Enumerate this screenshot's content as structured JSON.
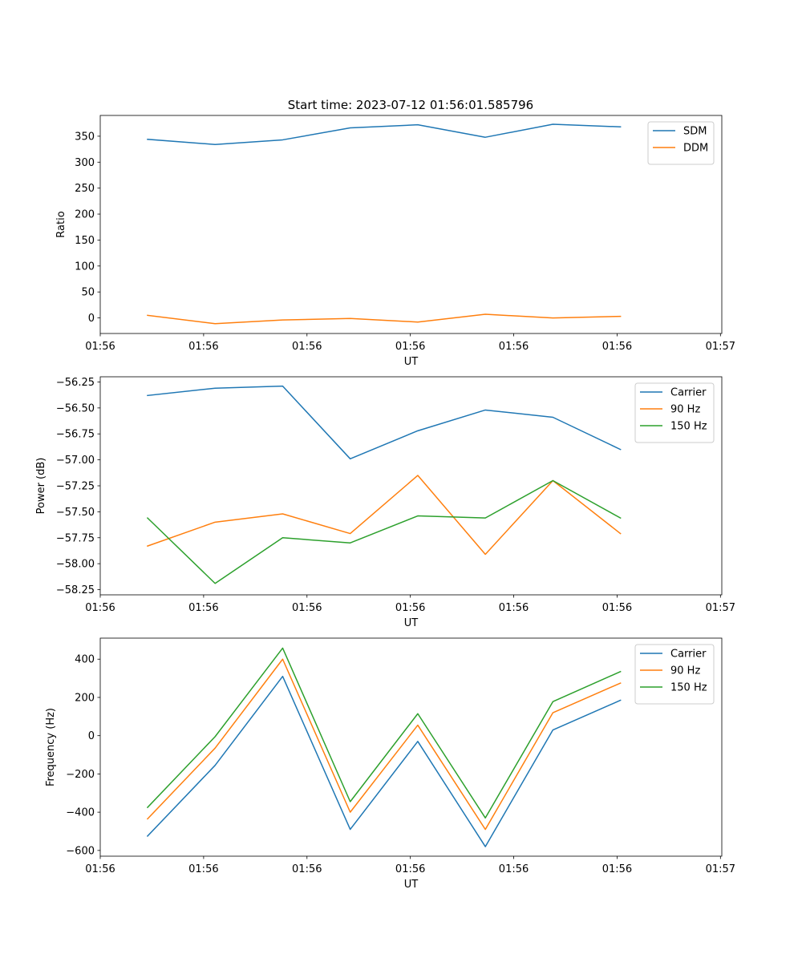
{
  "figure_title": "Start time: 2023-07-12 01:56:01.585796",
  "chart_data": [
    {
      "type": "line",
      "ylabel": "Ratio",
      "xlabel": "UT",
      "ylim": [
        -30,
        390
      ],
      "yticks": [
        0,
        50,
        100,
        150,
        200,
        250,
        300,
        350
      ],
      "xlim": [
        -0.7,
        8.5
      ],
      "xticks": [
        -0.7,
        0.83,
        2.36,
        3.89,
        5.42,
        6.95,
        8.48
      ],
      "xtick_labels": [
        "01:56",
        "01:56",
        "01:56",
        "01:56",
        "01:56",
        "01:56",
        "01:57"
      ],
      "x": [
        0,
        1,
        2,
        3,
        4,
        5,
        6,
        7
      ],
      "legend": "upper right",
      "series": [
        {
          "name": "SDM",
          "color": "#1f77b4",
          "values": [
            344,
            334,
            343,
            366,
            372,
            348,
            373,
            368
          ]
        },
        {
          "name": "DDM",
          "color": "#ff7f0e",
          "values": [
            5,
            -11,
            -4,
            -1,
            -8,
            7,
            0,
            3
          ]
        }
      ]
    },
    {
      "type": "line",
      "ylabel": "Power (dB)",
      "xlabel": "UT",
      "ylim": [
        -58.3,
        -56.2
      ],
      "yticks": [
        -58.25,
        -58.0,
        -57.75,
        -57.5,
        -57.25,
        -57.0,
        -56.75,
        -56.5,
        -56.25
      ],
      "ytick_labels": [
        "−58.25",
        "−58.00",
        "−57.75",
        "−57.50",
        "−57.25",
        "−57.00",
        "−56.75",
        "−56.50",
        "−56.25"
      ],
      "xlim": [
        -0.7,
        8.5
      ],
      "xticks": [
        -0.7,
        0.83,
        2.36,
        3.89,
        5.42,
        6.95,
        8.48
      ],
      "xtick_labels": [
        "01:56",
        "01:56",
        "01:56",
        "01:56",
        "01:56",
        "01:56",
        "01:57"
      ],
      "x": [
        0,
        1,
        2,
        3,
        4,
        5,
        6,
        7
      ],
      "legend": "upper right",
      "series": [
        {
          "name": "Carrier",
          "color": "#1f77b4",
          "values": [
            -56.38,
            -56.31,
            -56.29,
            -56.99,
            -56.72,
            -56.52,
            -56.59,
            -56.9
          ]
        },
        {
          "name": "90 Hz",
          "color": "#ff7f0e",
          "values": [
            -57.83,
            -57.6,
            -57.52,
            -57.71,
            -57.15,
            -57.91,
            -57.2,
            -57.71
          ]
        },
        {
          "name": "150 Hz",
          "color": "#2ca02c",
          "values": [
            -57.56,
            -58.19,
            -57.75,
            -57.8,
            -57.54,
            -57.56,
            -57.2,
            -57.56
          ]
        }
      ]
    },
    {
      "type": "line",
      "ylabel": "Frequency (Hz)",
      "xlabel": "UT",
      "ylim": [
        -630,
        510
      ],
      "yticks": [
        -600,
        -400,
        -200,
        0,
        200,
        400
      ],
      "ytick_labels": [
        "−600",
        "−400",
        "−200",
        "0",
        "200",
        "400"
      ],
      "xlim": [
        -0.7,
        8.5
      ],
      "xticks": [
        -0.7,
        0.83,
        2.36,
        3.89,
        5.42,
        6.95,
        8.48
      ],
      "xtick_labels": [
        "01:56",
        "01:56",
        "01:56",
        "01:56",
        "01:56",
        "01:56",
        "01:57"
      ],
      "x": [
        0,
        1,
        2,
        3,
        4,
        5,
        6,
        7
      ],
      "legend": "upper right",
      "series": [
        {
          "name": "Carrier",
          "color": "#1f77b4",
          "values": [
            -525,
            -155,
            310,
            -490,
            -30,
            -580,
            30,
            185
          ]
        },
        {
          "name": "90 Hz",
          "color": "#ff7f0e",
          "values": [
            -435,
            -65,
            400,
            -400,
            55,
            -490,
            120,
            275
          ]
        },
        {
          "name": "150 Hz",
          "color": "#2ca02c",
          "values": [
            -375,
            -5,
            458,
            -345,
            115,
            -430,
            178,
            335
          ]
        }
      ]
    }
  ]
}
